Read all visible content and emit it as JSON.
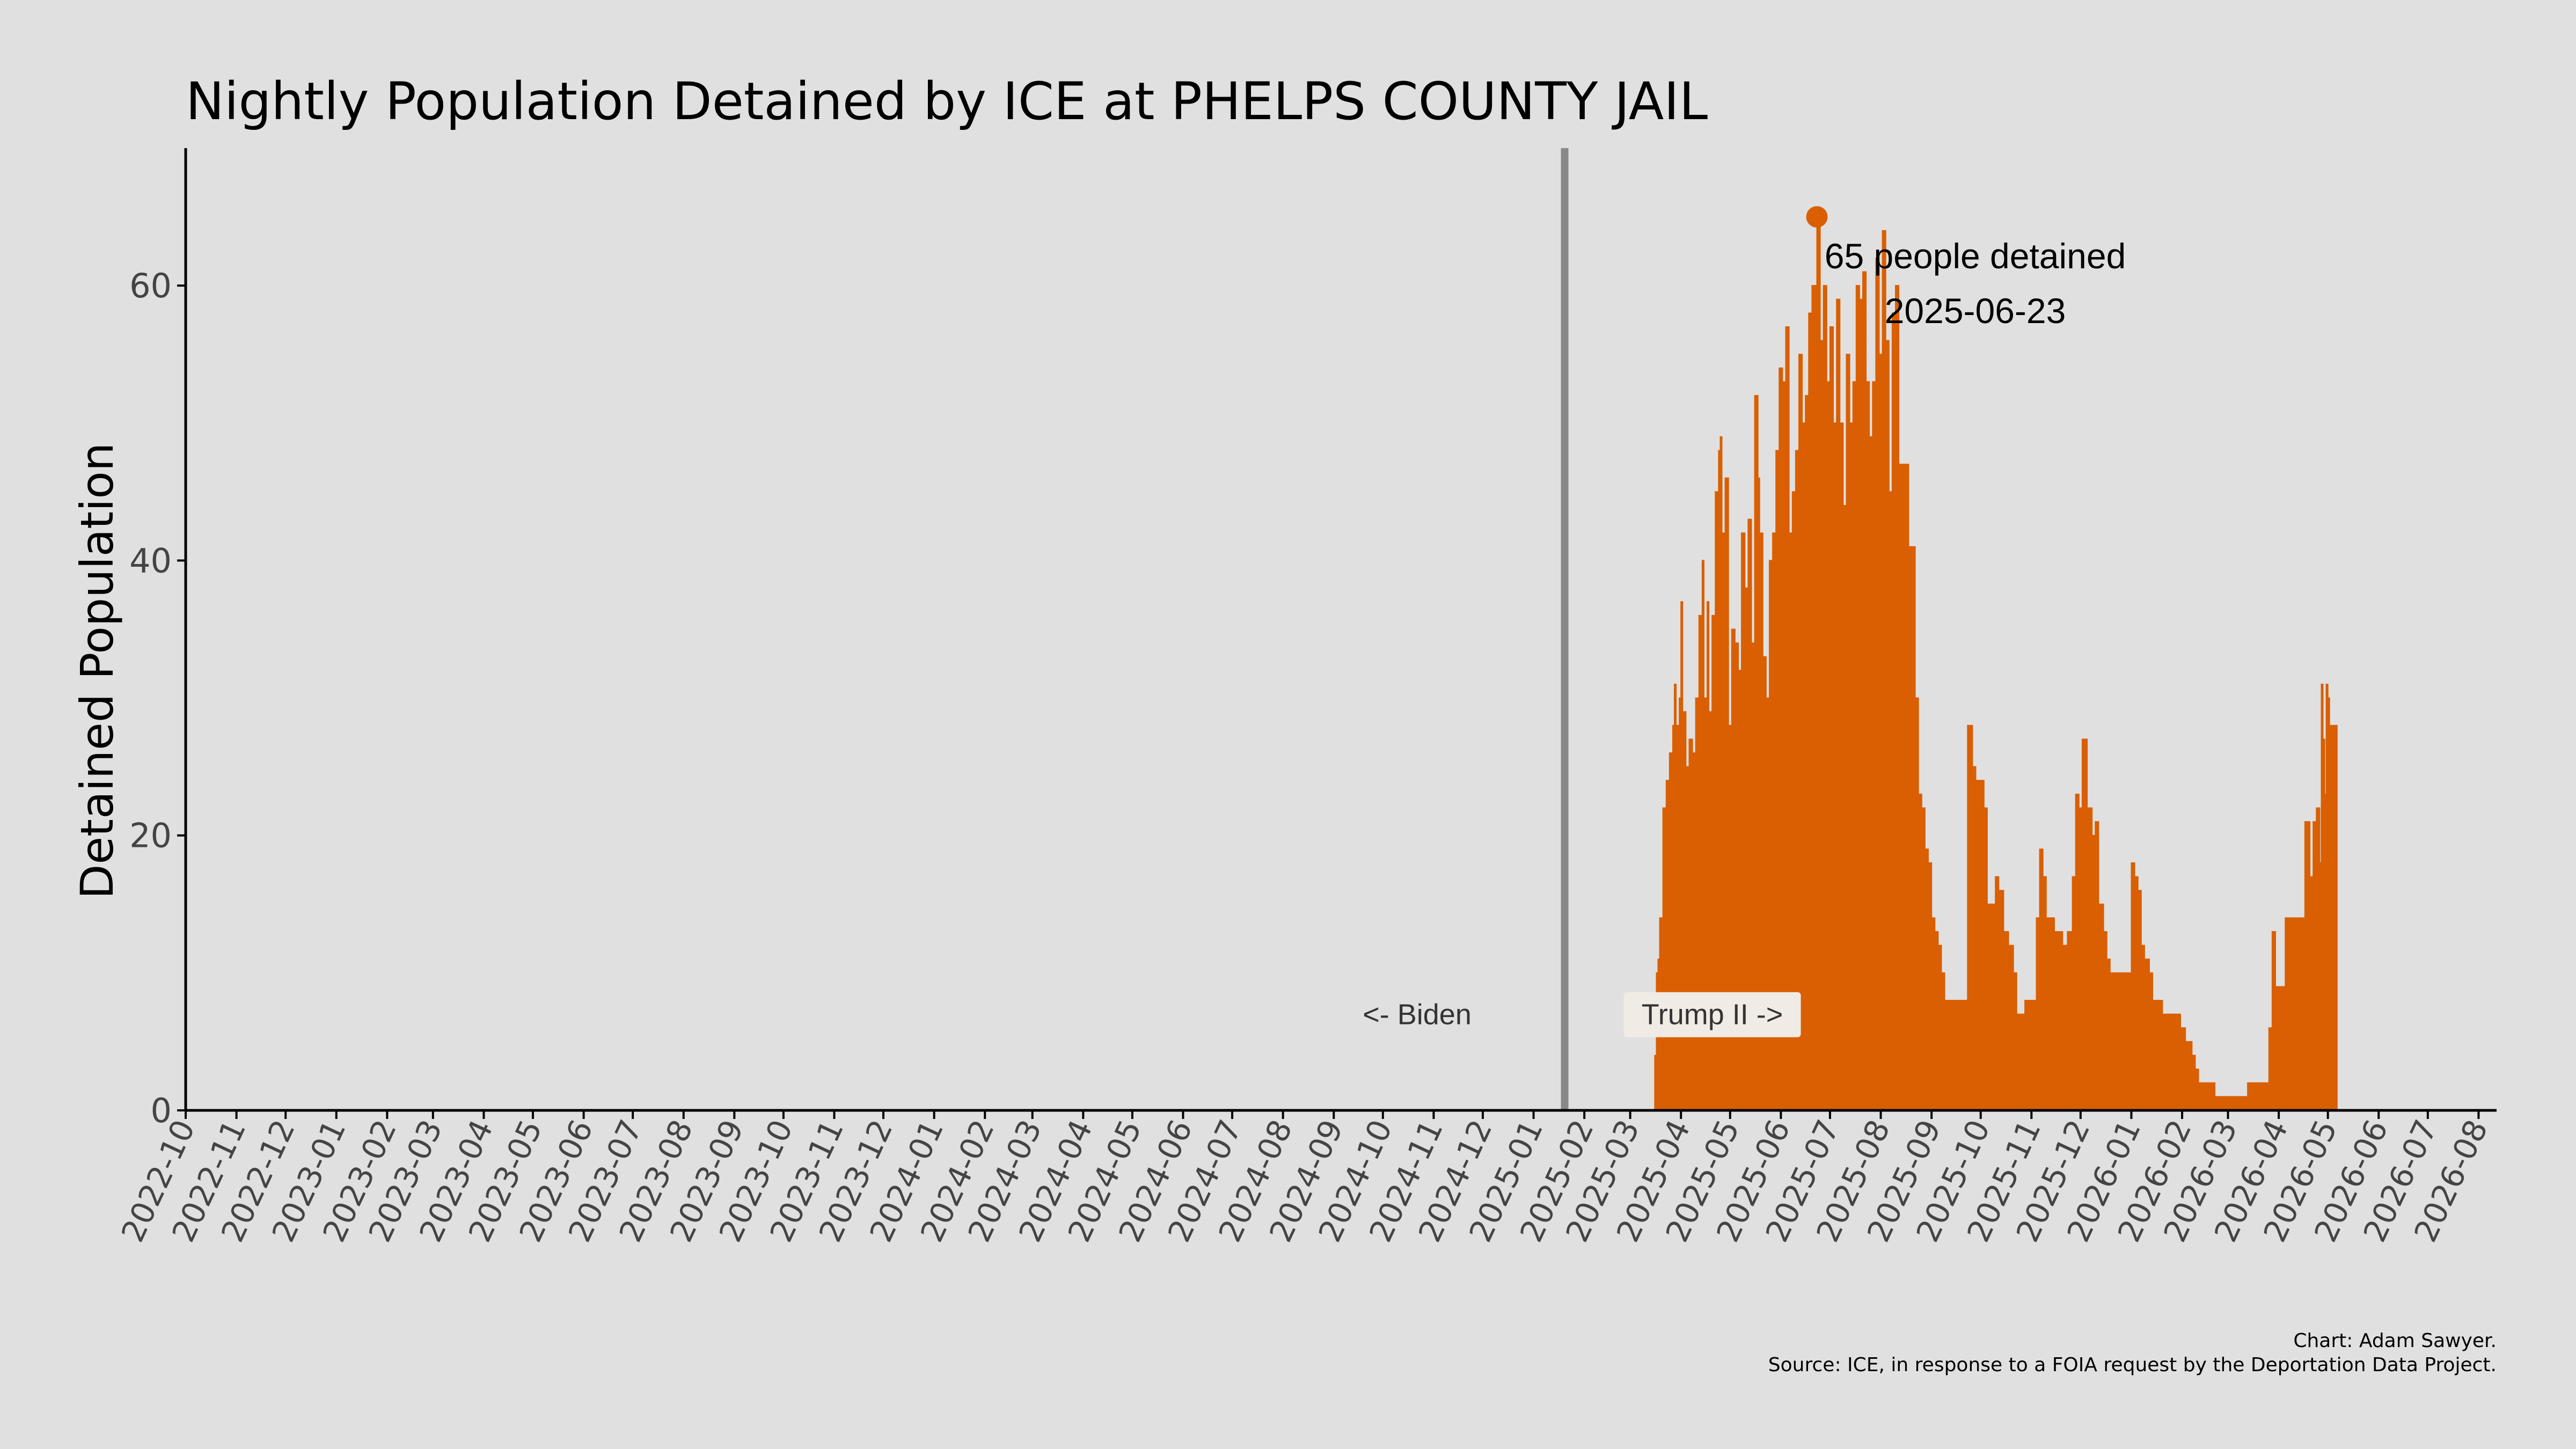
{
  "chart_data": {
    "type": "area",
    "title": "Nightly Population Detained by ICE at PHELPS COUNTY JAIL",
    "xlabel": "",
    "ylabel": "Detained Population",
    "xlim": [
      "2022-10-01",
      "2026-08-12"
    ],
    "ylim": [
      0,
      70
    ],
    "yticks": [
      0,
      20,
      40,
      60
    ],
    "xtick_labels": [
      "2022-10",
      "2022-11",
      "2022-12",
      "2023-01",
      "2023-02",
      "2023-03",
      "2023-04",
      "2023-05",
      "2023-06",
      "2023-07",
      "2023-08",
      "2023-09",
      "2023-10",
      "2023-11",
      "2023-12",
      "2024-01",
      "2024-02",
      "2024-03",
      "2024-04",
      "2024-05",
      "2024-06",
      "2024-07",
      "2024-08",
      "2024-09",
      "2024-10",
      "2024-11",
      "2024-12",
      "2025-01",
      "2025-02",
      "2025-03",
      "2025-04",
      "2025-05",
      "2025-06",
      "2025-07",
      "2025-08",
      "2025-09",
      "2025-10",
      "2025-11",
      "2025-12",
      "2026-01",
      "2026-02",
      "2026-03",
      "2026-04",
      "2026-05",
      "2026-06",
      "2026-07",
      "2026-08"
    ],
    "grid": false,
    "series_color": "#d95f02",
    "series": [
      {
        "points": [
          [
            "2025-03-16",
            4
          ],
          [
            "2025-03-17",
            10
          ],
          [
            "2025-03-18",
            11
          ],
          [
            "2025-03-19",
            14
          ],
          [
            "2025-03-21",
            22
          ],
          [
            "2025-03-23",
            24
          ],
          [
            "2025-03-25",
            26
          ],
          [
            "2025-03-27",
            28
          ],
          [
            "2025-03-28",
            31
          ],
          [
            "2025-03-29",
            28
          ],
          [
            "2025-03-31",
            30
          ],
          [
            "2025-04-01",
            37
          ],
          [
            "2025-04-02",
            29
          ],
          [
            "2025-04-04",
            25
          ],
          [
            "2025-04-06",
            27
          ],
          [
            "2025-04-08",
            26
          ],
          [
            "2025-04-10",
            30
          ],
          [
            "2025-04-12",
            36
          ],
          [
            "2025-04-14",
            40
          ],
          [
            "2025-04-15",
            30
          ],
          [
            "2025-04-17",
            37
          ],
          [
            "2025-04-18",
            29
          ],
          [
            "2025-04-20",
            36
          ],
          [
            "2025-04-22",
            45
          ],
          [
            "2025-04-24",
            48
          ],
          [
            "2025-04-25",
            49
          ],
          [
            "2025-04-26",
            42
          ],
          [
            "2025-04-28",
            46
          ],
          [
            "2025-04-30",
            28
          ],
          [
            "2025-05-02",
            35
          ],
          [
            "2025-05-04",
            34
          ],
          [
            "2025-05-06",
            32
          ],
          [
            "2025-05-08",
            42
          ],
          [
            "2025-05-10",
            38
          ],
          [
            "2025-05-12",
            43
          ],
          [
            "2025-05-14",
            34
          ],
          [
            "2025-05-16",
            52
          ],
          [
            "2025-05-18",
            46
          ],
          [
            "2025-05-19",
            42
          ],
          [
            "2025-05-21",
            33
          ],
          [
            "2025-05-23",
            30
          ],
          [
            "2025-05-25",
            40
          ],
          [
            "2025-05-27",
            42
          ],
          [
            "2025-05-29",
            48
          ],
          [
            "2025-05-31",
            54
          ],
          [
            "2025-06-02",
            53
          ],
          [
            "2025-06-04",
            57
          ],
          [
            "2025-06-06",
            42
          ],
          [
            "2025-06-08",
            45
          ],
          [
            "2025-06-10",
            48
          ],
          [
            "2025-06-12",
            55
          ],
          [
            "2025-06-14",
            50
          ],
          [
            "2025-06-16",
            52
          ],
          [
            "2025-06-18",
            58
          ],
          [
            "2025-06-20",
            60
          ],
          [
            "2025-06-23",
            65
          ],
          [
            "2025-06-25",
            56
          ],
          [
            "2025-06-27",
            60
          ],
          [
            "2025-06-29",
            53
          ],
          [
            "2025-07-01",
            57
          ],
          [
            "2025-07-03",
            50
          ],
          [
            "2025-07-05",
            59
          ],
          [
            "2025-07-07",
            50
          ],
          [
            "2025-07-09",
            44
          ],
          [
            "2025-07-11",
            55
          ],
          [
            "2025-07-13",
            50
          ],
          [
            "2025-07-15",
            53
          ],
          [
            "2025-07-17",
            60
          ],
          [
            "2025-07-19",
            59
          ],
          [
            "2025-07-21",
            61
          ],
          [
            "2025-07-23",
            53
          ],
          [
            "2025-07-25",
            49
          ],
          [
            "2025-07-27",
            53
          ],
          [
            "2025-07-29",
            62
          ],
          [
            "2025-07-31",
            55
          ],
          [
            "2025-08-02",
            64
          ],
          [
            "2025-08-04",
            56
          ],
          [
            "2025-08-06",
            45
          ],
          [
            "2025-08-08",
            58
          ],
          [
            "2025-08-10",
            60
          ],
          [
            "2025-08-12",
            47
          ],
          [
            "2025-08-14",
            47
          ],
          [
            "2025-08-16",
            47
          ],
          [
            "2025-08-18",
            41
          ],
          [
            "2025-08-20",
            41
          ],
          [
            "2025-08-22",
            30
          ],
          [
            "2025-08-24",
            23
          ],
          [
            "2025-08-26",
            22
          ],
          [
            "2025-08-28",
            19
          ],
          [
            "2025-08-30",
            18
          ],
          [
            "2025-09-01",
            14
          ],
          [
            "2025-09-03",
            13
          ],
          [
            "2025-09-05",
            12
          ],
          [
            "2025-09-07",
            10
          ],
          [
            "2025-09-09",
            8
          ],
          [
            "2025-09-12",
            8
          ],
          [
            "2025-09-16",
            8
          ],
          [
            "2025-09-20",
            8
          ],
          [
            "2025-09-23",
            28
          ],
          [
            "2025-09-26",
            25
          ],
          [
            "2025-09-28",
            24
          ],
          [
            "2025-10-03",
            22
          ],
          [
            "2025-10-05",
            15
          ],
          [
            "2025-10-08",
            15
          ],
          [
            "2025-10-10",
            17
          ],
          [
            "2025-10-12",
            16
          ],
          [
            "2025-10-15",
            13
          ],
          [
            "2025-10-18",
            12
          ],
          [
            "2025-10-21",
            10
          ],
          [
            "2025-10-23",
            7
          ],
          [
            "2025-10-26",
            7
          ],
          [
            "2025-10-28",
            8
          ],
          [
            "2025-11-02",
            8
          ],
          [
            "2025-11-04",
            14
          ],
          [
            "2025-11-06",
            19
          ],
          [
            "2025-11-08",
            17
          ],
          [
            "2025-11-10",
            14
          ],
          [
            "2025-11-13",
            14
          ],
          [
            "2025-11-15",
            13
          ],
          [
            "2025-11-20",
            12
          ],
          [
            "2025-11-23",
            13
          ],
          [
            "2025-11-26",
            17
          ],
          [
            "2025-11-28",
            23
          ],
          [
            "2025-11-30",
            22
          ],
          [
            "2025-12-02",
            27
          ],
          [
            "2025-12-05",
            22
          ],
          [
            "2025-12-08",
            20
          ],
          [
            "2025-12-10",
            21
          ],
          [
            "2025-12-12",
            15
          ],
          [
            "2025-12-15",
            13
          ],
          [
            "2025-12-17",
            11
          ],
          [
            "2025-12-19",
            10
          ],
          [
            "2025-12-24",
            10
          ],
          [
            "2025-12-29",
            10
          ],
          [
            "2026-01-01",
            18
          ],
          [
            "2026-01-03",
            17
          ],
          [
            "2026-01-05",
            16
          ],
          [
            "2026-01-07",
            12
          ],
          [
            "2026-01-09",
            11
          ],
          [
            "2026-01-12",
            10
          ],
          [
            "2026-01-14",
            8
          ],
          [
            "2026-01-17",
            8
          ],
          [
            "2026-01-20",
            7
          ],
          [
            "2026-01-28",
            7
          ],
          [
            "2026-01-31",
            6
          ],
          [
            "2026-02-03",
            5
          ],
          [
            "2026-02-07",
            4
          ],
          [
            "2026-02-09",
            3
          ],
          [
            "2026-02-11",
            2
          ],
          [
            "2026-02-18",
            2
          ],
          [
            "2026-02-21",
            1
          ],
          [
            "2026-03-09",
            1
          ],
          [
            "2026-03-13",
            2
          ],
          [
            "2026-03-22",
            2
          ],
          [
            "2026-03-26",
            6
          ],
          [
            "2026-03-28",
            13
          ],
          [
            "2026-03-30",
            9
          ],
          [
            "2026-04-03",
            9
          ],
          [
            "2026-04-05",
            14
          ],
          [
            "2026-04-10",
            14
          ],
          [
            "2026-04-15",
            14
          ],
          [
            "2026-04-17",
            21
          ],
          [
            "2026-04-20",
            17
          ],
          [
            "2026-04-22",
            21
          ],
          [
            "2026-04-24",
            22
          ],
          [
            "2026-04-26",
            18
          ],
          [
            "2026-04-27",
            31
          ],
          [
            "2026-04-28",
            27
          ],
          [
            "2026-04-29",
            23
          ],
          [
            "2026-04-30",
            31
          ],
          [
            "2026-05-01",
            30
          ],
          [
            "2026-05-02",
            28
          ],
          [
            "2026-05-04",
            28
          ]
        ]
      }
    ],
    "divider_date": "2025-01-20",
    "peak": {
      "date": "2025-06-23",
      "value": 65
    },
    "annotations": {
      "peak_line1": "65 people detained",
      "peak_line2": "2025-06-23",
      "left_era": "<- Biden",
      "right_era": "Trump II ->"
    }
  },
  "caption": {
    "line1": "Chart: Adam Sawyer.",
    "line2": "Source: ICE, in response to a FOIA request by the Deportation Data Project."
  }
}
